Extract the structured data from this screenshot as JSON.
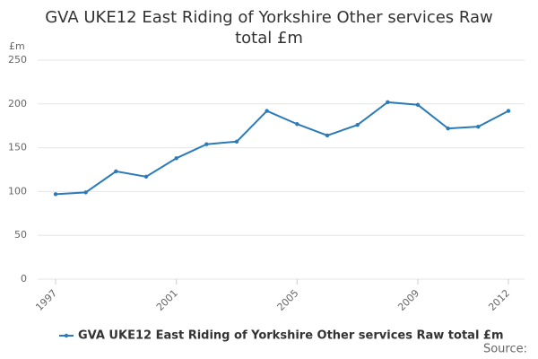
{
  "chart_data": {
    "type": "line",
    "title": "GVA UKE12 East Riding of Yorkshire Other services Raw total £m",
    "y_label": "£m",
    "source": "Source:",
    "x": [
      1997,
      1998,
      1999,
      2000,
      2001,
      2002,
      2003,
      2004,
      2005,
      2006,
      2007,
      2008,
      2009,
      2010,
      2011,
      2012
    ],
    "series": [
      {
        "name": "GVA UKE12 East Riding of Yorkshire Other services Raw total £m",
        "color": "#2b7bb9",
        "values": [
          97,
          99,
          123,
          117,
          138,
          154,
          157,
          192,
          177,
          164,
          176,
          202,
          199,
          172,
          174,
          192
        ]
      }
    ],
    "xlim": [
      1997,
      2012
    ],
    "xticks": [
      1997,
      2001,
      2005,
      2009,
      2012
    ],
    "ylim": [
      0,
      250
    ],
    "yticks": [
      0,
      50,
      100,
      150,
      200,
      250
    ],
    "grid": true
  }
}
